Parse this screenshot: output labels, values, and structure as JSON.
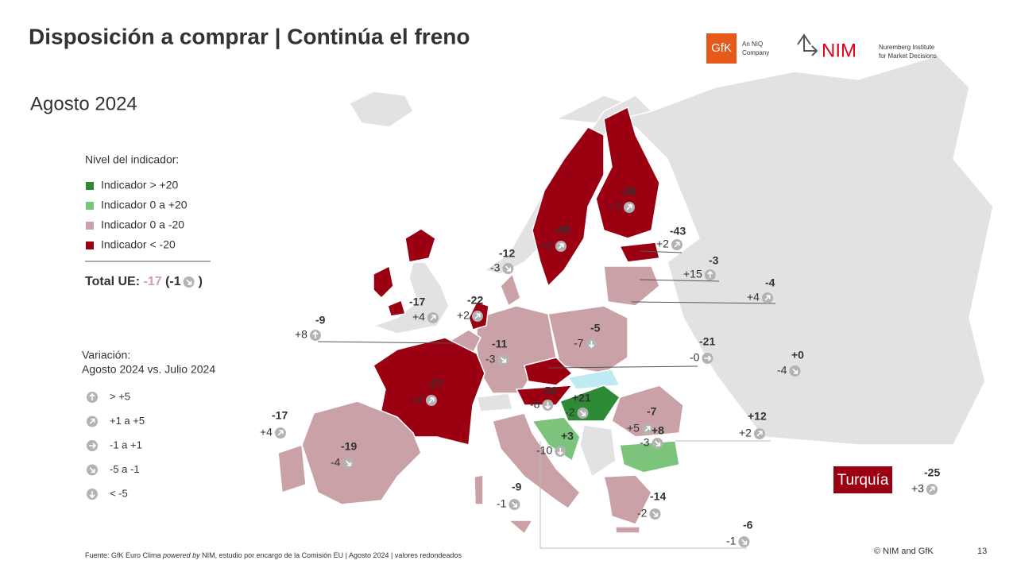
{
  "title": "Disposición a comprar | Continúa el freno",
  "subtitle": "Agosto 2024",
  "logos": {
    "gfk": "GfK",
    "gfk_tag1": "An NIQ",
    "gfk_tag2": "Company",
    "nim": "NIM",
    "nim_tag1": "Nuremberg Institute",
    "nim_tag2": "for Market Decisions"
  },
  "legend": {
    "title": "Nivel del indicador:",
    "items": [
      {
        "label": "Indicador > +20",
        "color": "#2e8b35"
      },
      {
        "label": "Indicador 0 a +20",
        "color": "#7cc47c"
      },
      {
        "label": "Indicador 0 a -20",
        "color": "#c9a1a6"
      },
      {
        "label": "Indicador < -20",
        "color": "#9b0012"
      }
    ]
  },
  "total": {
    "label": "Total UE:",
    "value": "-17",
    "change": "(-1",
    "close": ")"
  },
  "variation": {
    "title1": "Variación:",
    "title2": "Agosto 2024 vs. Julio 2024",
    "items": [
      "> +5",
      "+1 a +5",
      "-1 a +1",
      "-5 a -1",
      "< -5"
    ]
  },
  "countries": [
    {
      "value": "-36",
      "change": "+2"
    },
    {
      "value": "-48",
      "change": "+2"
    },
    {
      "value": "-43",
      "change": "+2"
    },
    {
      "value": "-3",
      "change": "+15"
    },
    {
      "value": "-4",
      "change": "+4"
    },
    {
      "value": "-12",
      "change": "-3"
    },
    {
      "value": "-17",
      "change": "+4"
    },
    {
      "value": "-22",
      "change": "+2"
    },
    {
      "value": "-9",
      "change": "+8"
    },
    {
      "value": "-11",
      "change": "-3"
    },
    {
      "value": "-5",
      "change": "-7"
    },
    {
      "value": "-21",
      "change": "-0"
    },
    {
      "value": "+0",
      "change": "-4"
    },
    {
      "value": "-27",
      "change": "+2"
    },
    {
      "value": "-50",
      "change": "-8"
    },
    {
      "value": "+21",
      "change": "-2"
    },
    {
      "value": "-7",
      "change": "+5"
    },
    {
      "value": "+12",
      "change": "+2"
    },
    {
      "value": "-17",
      "change": "+4"
    },
    {
      "value": "-19",
      "change": "-4"
    },
    {
      "value": "+3",
      "change": "-10"
    },
    {
      "value": "+8",
      "change": "-3"
    },
    {
      "value": "-9",
      "change": "-1"
    },
    {
      "value": "-14",
      "change": "-2"
    },
    {
      "value": "-6",
      "change": "-1"
    },
    {
      "value": "-25",
      "change": "+3"
    }
  ],
  "turkey": "Turquía",
  "footer": {
    "a": "Fuente: GfK Euro Clima ",
    "b": "powered by",
    "c": " NIM, estudio por encargo de la Comisión EU | Agosto 2024 | valores redondeados"
  },
  "copyright": "© NIM and GfK",
  "page": "13"
}
